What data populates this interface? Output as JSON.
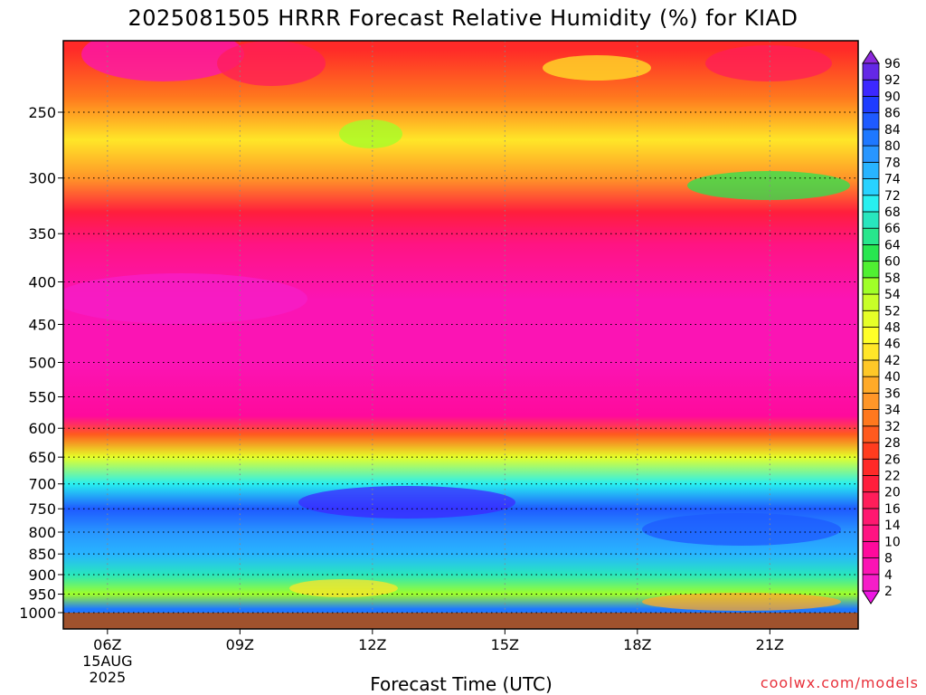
{
  "chart_data": {
    "type": "heatmap",
    "title": "2025081505 HRRR Forecast Relative Humidity (%) for KIAD",
    "xlabel": "Forecast Time (UTC)",
    "ylabel": "",
    "credit": "coolwx.com/models",
    "x_ticks": [
      {
        "hour": 6,
        "label": "06Z",
        "sub": [
          "15AUG",
          "2025"
        ]
      },
      {
        "hour": 9,
        "label": "09Z"
      },
      {
        "hour": 12,
        "label": "12Z"
      },
      {
        "hour": 15,
        "label": "15Z"
      },
      {
        "hour": 18,
        "label": "18Z"
      },
      {
        "hour": 21,
        "label": "21Z"
      }
    ],
    "xlim": [
      5,
      23
    ],
    "y_ticks": [
      250,
      300,
      350,
      400,
      450,
      500,
      550,
      600,
      650,
      700,
      750,
      800,
      850,
      900,
      950,
      1000
    ],
    "ylim_hPa": [
      1000,
      200
    ],
    "y_scale": "log-pressure",
    "grid": true,
    "colorbar_levels": [
      2,
      4,
      8,
      10,
      14,
      16,
      20,
      22,
      26,
      28,
      32,
      34,
      36,
      40,
      42,
      46,
      48,
      52,
      54,
      58,
      60,
      64,
      66,
      68,
      72,
      74,
      78,
      80,
      84,
      86,
      90,
      92,
      96
    ],
    "colorbar_colors": [
      "#ee16e2",
      "#f51ec8",
      "#fb14b4",
      "#ff0a9c",
      "#ff1482",
      "#ff1870",
      "#ff1e5a",
      "#ff1e3c",
      "#ff2a28",
      "#ff3c1e",
      "#ff5a1e",
      "#ff781e",
      "#ff9628",
      "#ffaa28",
      "#ffc828",
      "#ffe628",
      "#ffff28",
      "#e6ff28",
      "#c8ff28",
      "#a0ff28",
      "#50f032",
      "#28e650",
      "#28e68c",
      "#28e6be",
      "#28f0f0",
      "#28d2ff",
      "#28b4ff",
      "#2896ff",
      "#1e78ff",
      "#1e5aff",
      "#1e3cff",
      "#3c28ff",
      "#6428e6",
      "#8c28dc"
    ],
    "humidity_profile": [
      {
        "hPa": 210,
        "rh": 24
      },
      {
        "hPa": 240,
        "rh": 34
      },
      {
        "hPa": 270,
        "rh": 44
      },
      {
        "hPa": 300,
        "rh": 36
      },
      {
        "hPa": 330,
        "rh": 22
      },
      {
        "hPa": 360,
        "rh": 12
      },
      {
        "hPa": 420,
        "rh": 6
      },
      {
        "hPa": 500,
        "rh": 6
      },
      {
        "hPa": 580,
        "rh": 10
      },
      {
        "hPa": 610,
        "rh": 30
      },
      {
        "hPa": 650,
        "rh": 50
      },
      {
        "hPa": 700,
        "rh": 72
      },
      {
        "hPa": 750,
        "rh": 86
      },
      {
        "hPa": 800,
        "rh": 80
      },
      {
        "hPa": 850,
        "rh": 78
      },
      {
        "hPa": 900,
        "rh": 68
      },
      {
        "hPa": 950,
        "rh": 58
      },
      {
        "hPa": 990,
        "rh": 84
      }
    ],
    "ground_color": "#a0522d"
  }
}
